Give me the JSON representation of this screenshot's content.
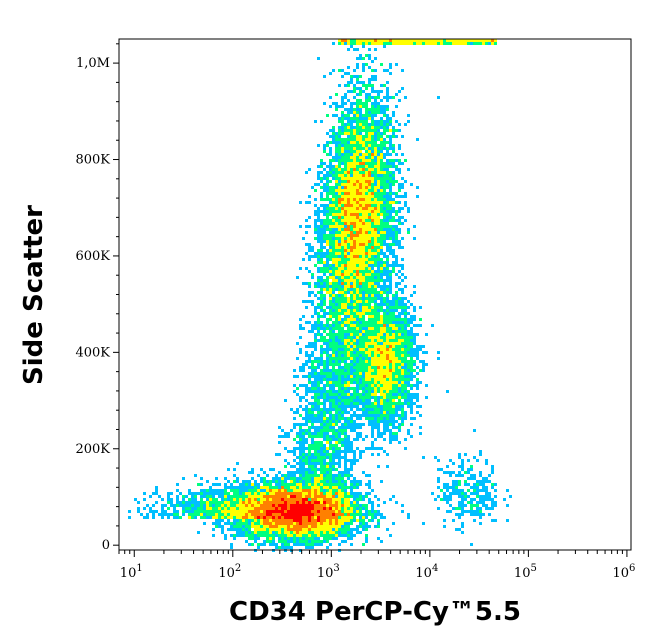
{
  "chart_data": {
    "type": "scatter",
    "subtype": "flow-cytometry-density-dot-plot",
    "title": "",
    "xlabel": "CD34 PerCP-Cy™5.5",
    "ylabel": "Side Scatter",
    "x_scale": "log",
    "y_scale": "linear",
    "xlim": [
      7,
      1100000
    ],
    "ylim": [
      -10000,
      1050000
    ],
    "x_ticks": [
      {
        "value": 10,
        "base": "10",
        "exp": "1"
      },
      {
        "value": 100,
        "base": "10",
        "exp": "2"
      },
      {
        "value": 1000,
        "base": "10",
        "exp": "3"
      },
      {
        "value": 10000,
        "base": "10",
        "exp": "4"
      },
      {
        "value": 100000,
        "base": "10",
        "exp": "5"
      },
      {
        "value": 1000000,
        "base": "10",
        "exp": "6"
      }
    ],
    "y_ticks": [
      {
        "value": 0,
        "label": "0"
      },
      {
        "value": 200000,
        "label": "200K"
      },
      {
        "value": 400000,
        "label": "400K"
      },
      {
        "value": 600000,
        "label": "600K"
      },
      {
        "value": 800000,
        "label": "800K"
      },
      {
        "value": 1000000,
        "label": "1,0M"
      }
    ],
    "grid": false,
    "legend": "none",
    "color_scale": [
      "#0000ff",
      "#00bfff",
      "#00ff80",
      "#ffff00",
      "#ff8000",
      "#ff0000"
    ],
    "populations": [
      {
        "center_x": 450,
        "center_y": 70000,
        "spread_log_x": 0.28,
        "spread_y": 28000,
        "peak_density": "high"
      },
      {
        "center_x": 2000,
        "center_y": 700000,
        "spread_log_x": 0.18,
        "spread_y": 110000,
        "peak_density": "medium-high"
      },
      {
        "center_x": 3500,
        "center_y": 380000,
        "spread_log_x": 0.15,
        "spread_y": 60000,
        "peak_density": "medium"
      },
      {
        "center_x": 25000,
        "center_y": 120000,
        "spread_log_x": 0.15,
        "spread_y": 30000,
        "peak_density": "low"
      }
    ]
  }
}
